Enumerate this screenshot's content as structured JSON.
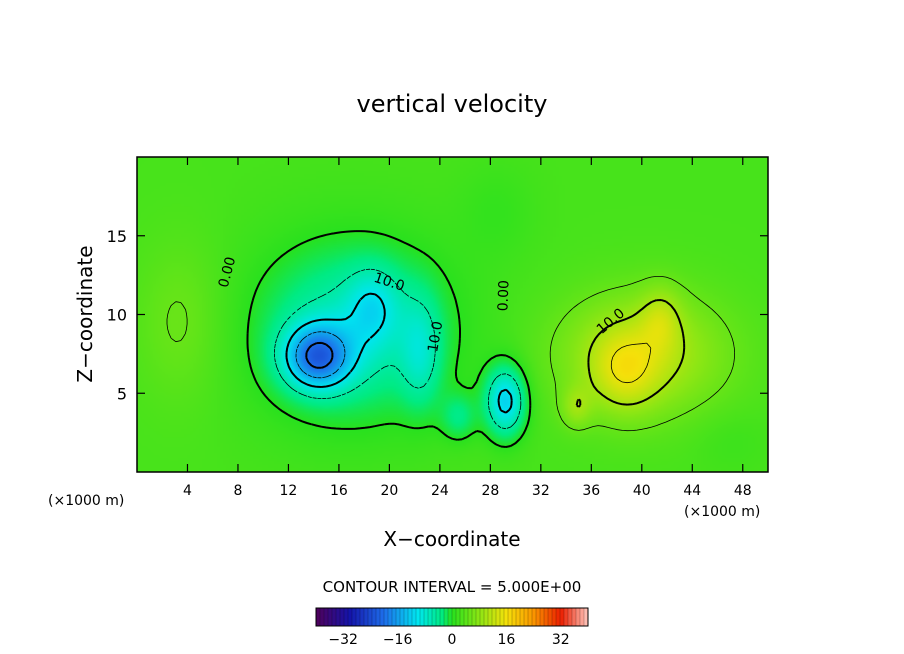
{
  "chart_data": {
    "type": "heatmap",
    "title": "vertical velocity",
    "xlabel": "X−coordinate",
    "ylabel": "Z−coordinate",
    "x_unit": "(×1000 m)",
    "y_unit": "(×1000 m)",
    "xlim": [
      0,
      50
    ],
    "ylim": [
      0,
      20
    ],
    "x_ticks": [
      4,
      8,
      12,
      16,
      20,
      24,
      28,
      32,
      36,
      40,
      44,
      48
    ],
    "y_ticks": [
      5,
      10,
      15
    ],
    "contour_interval_text": "CONTOUR INTERVAL = 5.000E+00",
    "contour_labels": [
      {
        "text": "0.00",
        "x": 7.1,
        "z": 12.7,
        "angle": -75
      },
      {
        "text": "10.0",
        "x": 20.0,
        "z": 12.1,
        "angle": 18
      },
      {
        "text": "10.0",
        "x": 23.6,
        "z": 8.6,
        "angle": -80
      },
      {
        "text": "0.00",
        "x": 29.0,
        "z": 11.2,
        "angle": -88
      },
      {
        "text": "10.0",
        "x": 37.5,
        "z": 9.6,
        "angle": -40
      }
    ],
    "colorbar": {
      "range": [
        -40,
        40
      ],
      "tick_values": [
        -32,
        -16,
        0,
        16,
        32
      ],
      "tick_labels": [
        "−32",
        "−16",
        "0",
        "16",
        "32"
      ]
    },
    "features": [
      {
        "kind": "downdraft",
        "x": 14.3,
        "z": 7.3,
        "peak": -28
      },
      {
        "kind": "downdraft",
        "x": 18.7,
        "z": 10.5,
        "peak": -12
      },
      {
        "kind": "downdraft",
        "x": 29.2,
        "z": 4.5,
        "peak": -13
      },
      {
        "kind": "updraft",
        "x": 38.6,
        "z": 6.3,
        "peak": 19
      },
      {
        "kind": "updraft",
        "x": 41.5,
        "z": 9.8,
        "peak": 16
      },
      {
        "kind": "updraft",
        "x": 34.8,
        "z": 4.1,
        "peak": 11
      }
    ]
  }
}
